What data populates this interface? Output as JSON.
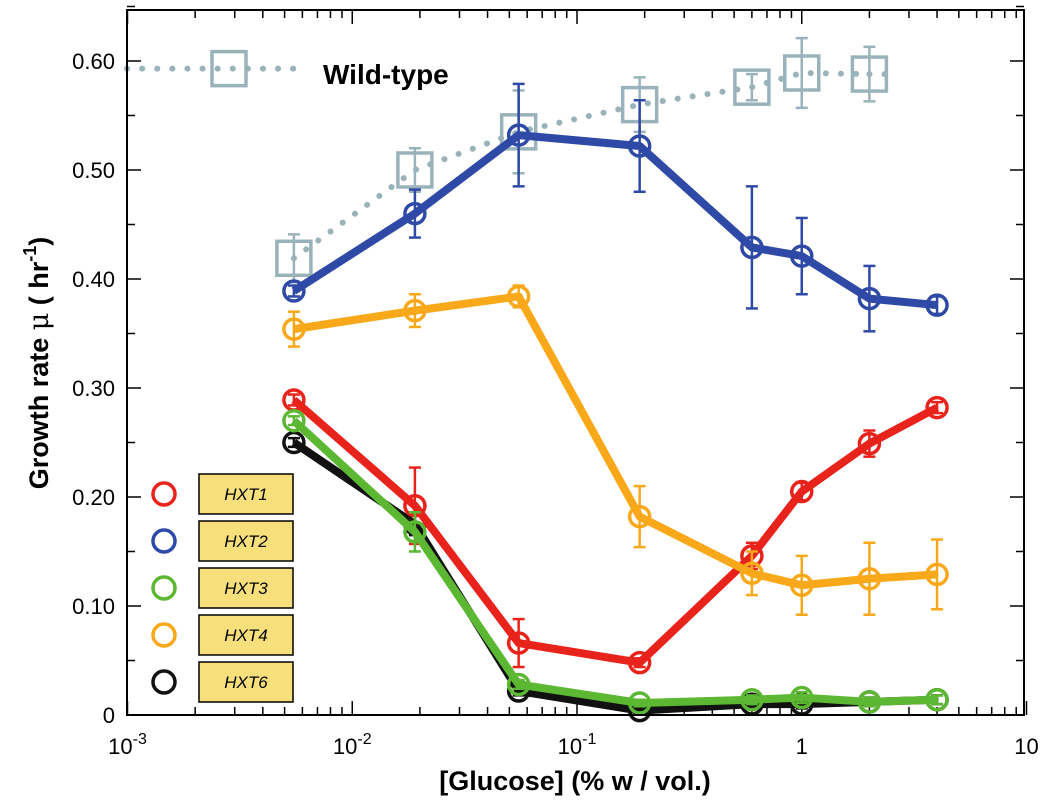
{
  "chart_data": {
    "type": "line",
    "title": "",
    "xlabel": "[Glucose] (% w / vol.)",
    "ylabel_main": "Growth rate ",
    "ylabel_symbol": "μ",
    "ylabel_unit_open": " ( hr",
    "ylabel_unit_exp": "-1",
    "ylabel_unit_close": ")",
    "x_scale": "log",
    "xlim": [
      0.001,
      10
    ],
    "ylim": [
      0,
      0.65
    ],
    "x_ticks": [
      {
        "value": 0.001,
        "base": "10",
        "exp": "-3"
      },
      {
        "value": 0.01,
        "base": "10",
        "exp": "-2"
      },
      {
        "value": 0.1,
        "base": "10",
        "exp": "-1"
      },
      {
        "value": 1,
        "base": "1",
        "exp": ""
      },
      {
        "value": 10,
        "base": "10",
        "exp": ""
      }
    ],
    "y_ticks": [
      {
        "value": 0,
        "label": "0"
      },
      {
        "value": 0.1,
        "label": "0.10"
      },
      {
        "value": 0.2,
        "label": "0.20"
      },
      {
        "value": 0.3,
        "label": "0.30"
      },
      {
        "value": 0.4,
        "label": "0.40"
      },
      {
        "value": 0.5,
        "label": "0.50"
      },
      {
        "value": 0.6,
        "label": "0.60"
      }
    ],
    "annotation": "Wild-type",
    "wildtype": {
      "color": "#9ab3ba",
      "x": [
        0.0055,
        0.019,
        0.055,
        0.19,
        0.6,
        1,
        2
      ],
      "y": [
        0.419,
        0.5,
        0.535,
        0.56,
        0.576,
        0.589,
        0.588
      ],
      "err": [
        0.022,
        0.02,
        0.038,
        0.025,
        0.012,
        0.032,
        0.025
      ]
    },
    "series": [
      {
        "name": "HXT1",
        "color": "#e8231c",
        "x": [
          0.0055,
          0.019,
          0.055,
          0.19,
          0.6,
          1,
          2,
          4
        ],
        "y": [
          0.289,
          0.192,
          0.066,
          0.048,
          0.146,
          0.205,
          0.249,
          0.282
        ],
        "err": [
          0.005,
          0.035,
          0.022,
          0.004,
          0.012,
          0.008,
          0.012,
          0.005
        ]
      },
      {
        "name": "HXT2",
        "color": "#2e4aa6",
        "x": [
          0.0055,
          0.019,
          0.055,
          0.19,
          0.6,
          1,
          2,
          4
        ],
        "y": [
          0.389,
          0.46,
          0.532,
          0.522,
          0.429,
          0.421,
          0.382,
          0.376
        ],
        "err": [
          0.005,
          0.022,
          0.047,
          0.042,
          0.056,
          0.035,
          0.03,
          0.008
        ]
      },
      {
        "name": "HXT3",
        "color": "#5cb833",
        "x": [
          0.0055,
          0.019,
          0.055,
          0.19,
          0.6,
          1,
          2,
          4
        ],
        "y": [
          0.27,
          0.168,
          0.028,
          0.011,
          0.014,
          0.016,
          0.012,
          0.014
        ],
        "err": [
          0.004,
          0.018,
          0.004,
          0.003,
          0.004,
          0.005,
          0.004,
          0.004
        ]
      },
      {
        "name": "HXT4",
        "color": "#f9a81a",
        "x": [
          0.0055,
          0.019,
          0.055,
          0.19,
          0.6,
          1,
          2,
          4
        ],
        "y": [
          0.354,
          0.371,
          0.384,
          0.182,
          0.13,
          0.119,
          0.125,
          0.129
        ],
        "err": [
          0.016,
          0.015,
          0.01,
          0.028,
          0.02,
          0.027,
          0.033,
          0.032
        ]
      },
      {
        "name": "HXT6",
        "color": "#111111",
        "x": [
          0.0055,
          0.019,
          0.055,
          0.19,
          0.6,
          1,
          2,
          4
        ],
        "y": [
          0.25,
          0.175,
          0.022,
          0.004,
          0.01,
          0.01,
          0.012,
          0.014
        ],
        "err": [
          0.004,
          0.01,
          0.004,
          0.003,
          0.004,
          0.004,
          0.004,
          0.004
        ]
      }
    ],
    "legend": {
      "placement": "bottom-left",
      "entries": [
        {
          "label": "HXT1",
          "color": "#e8231c"
        },
        {
          "label": "HXT2",
          "color": "#2e4aa6"
        },
        {
          "label": "HXT3",
          "color": "#5cb833"
        },
        {
          "label": "HXT4",
          "color": "#f9a81a"
        },
        {
          "label": "HXT6",
          "color": "#111111"
        }
      ],
      "box_fill": "#f7e07c"
    }
  }
}
